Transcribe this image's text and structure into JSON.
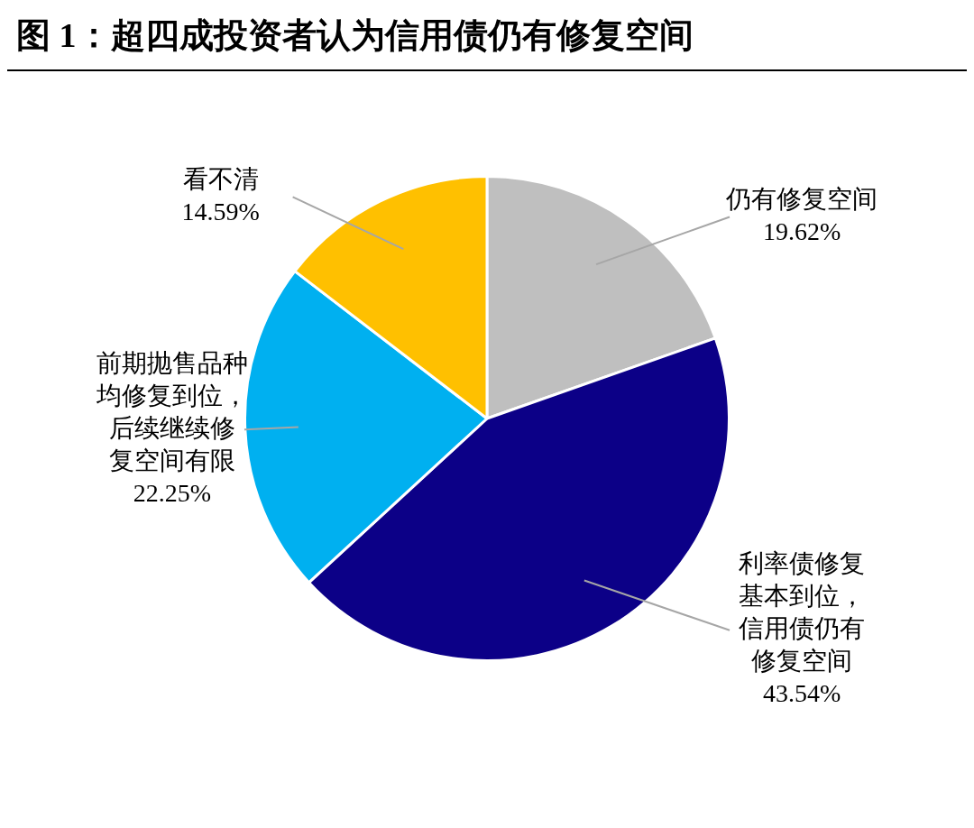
{
  "chart_data": {
    "type": "pie",
    "title": "图 1：超四成投资者认为信用债仍有修复空间",
    "categories": [
      "仍有修复空间",
      "利率债修复基本到位，信用债仍有修复空间",
      "前期抛售品种均修复到位，后续继续修复空间有限",
      "看不清"
    ],
    "values": [
      19.62,
      43.54,
      22.25,
      14.59
    ],
    "colors": [
      "#bfbfbf",
      "#0c0087",
      "#00b0f0",
      "#ffc000"
    ],
    "value_labels": [
      "19.62%",
      "43.54%",
      "22.25%",
      "14.59%"
    ]
  }
}
